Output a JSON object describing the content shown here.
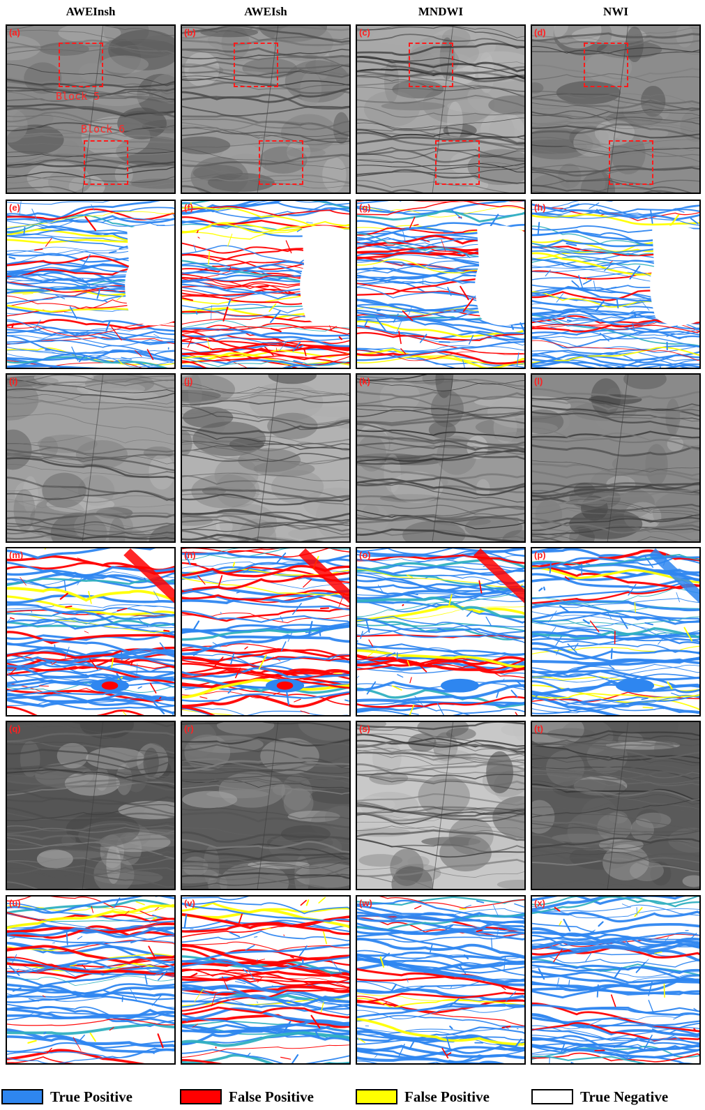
{
  "columns": [
    "AWEInsh",
    "AWEIsh",
    "MNDWI",
    "NWI"
  ],
  "rows": [
    {
      "kind": "image",
      "variant": "overview",
      "letters": [
        "(a)",
        "(b)",
        "(c)",
        "(d)"
      ]
    },
    {
      "kind": "map",
      "variant": "overview-map",
      "letters": [
        "(e)",
        "(f)",
        "(g)",
        "(h)"
      ]
    },
    {
      "kind": "image",
      "variant": "block5",
      "letters": [
        "(i)",
        "(j)",
        "(k)",
        "(l)"
      ]
    },
    {
      "kind": "map",
      "variant": "block5-map",
      "letters": [
        "(m)",
        "(n)",
        "(o)",
        "(p)"
      ]
    },
    {
      "kind": "image",
      "variant": "block6",
      "letters": [
        "(q)",
        "(r)",
        "(s)",
        "(t)"
      ]
    },
    {
      "kind": "map",
      "variant": "block6-map",
      "letters": [
        "(u)",
        "(v)",
        "(w)",
        "(x)"
      ]
    }
  ],
  "annotations": {
    "block5_label": "Block 5",
    "block6_label": "Block 6"
  },
  "legend": [
    {
      "label": "True Positive",
      "color": "#2e86f0"
    },
    {
      "label": "False Positive",
      "color": "#ff0000"
    },
    {
      "label": "False Positive",
      "color": "#ffff00"
    },
    {
      "label": "True Negative",
      "color": "#ffffff"
    }
  ],
  "colors": {
    "roi_outline": "#ff1a1a",
    "panel_letter": "#ff2020"
  }
}
